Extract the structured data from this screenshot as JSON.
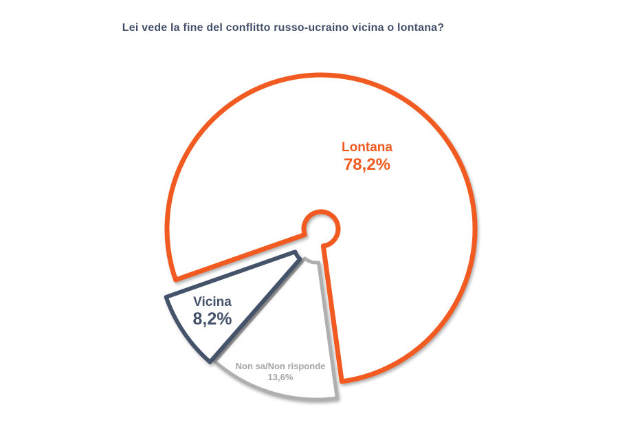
{
  "page": {
    "background": "#FFFFFF",
    "title_color": "#44506A"
  },
  "title": "Lei vede la fine del conflitto russo-ucraino vicina o lontana?",
  "chart_data": {
    "type": "pie",
    "title": "Lei vede la fine del conflitto russo-ucraino vicina o lontana?",
    "style": "outlined-donut",
    "direction": "clockwise",
    "start_angle_deg": 250.7,
    "donut_hole": true,
    "grid": false,
    "legend_position": "labels-on-slices",
    "slices": [
      {
        "id": "lontana",
        "label": "Lontana",
        "value": 78.2,
        "value_label": "78,2%",
        "color": "#F15B21",
        "exploded": false
      },
      {
        "id": "non-sa-non-risponde",
        "label": "Non sa/Non risponde",
        "value": 13.6,
        "value_label": "13,6%",
        "color": "#AFAFAF",
        "exploded": true
      },
      {
        "id": "vicina",
        "label": "Vicina",
        "value": 8.2,
        "value_label": "8,2%",
        "color": "#44526A",
        "exploded": true
      }
    ]
  }
}
